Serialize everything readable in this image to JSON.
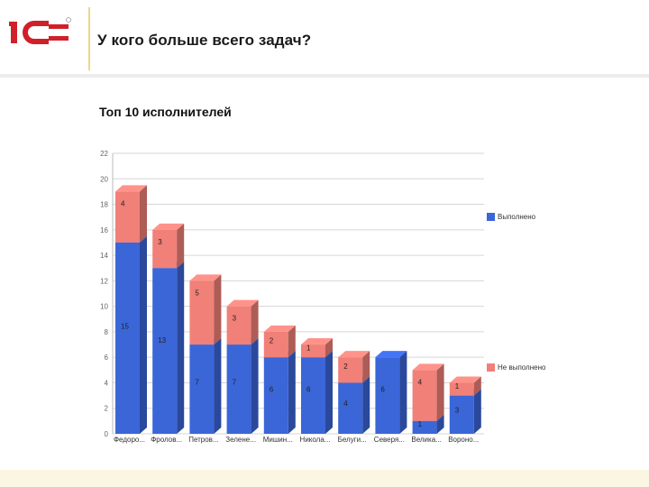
{
  "slide": {
    "title": "У кого больше всего задач?"
  },
  "colors": {
    "done": "#3a66d8",
    "notdone": "#f08078",
    "accent": "#d0202a"
  },
  "chart_data": {
    "type": "bar",
    "stacked": true,
    "title": "Топ 10 исполнителей",
    "categories": [
      "Федоро...",
      "Фролов...",
      "Петров...",
      "Зелене...",
      "Мишин...",
      "Никола...",
      "Белуги...",
      "Северя...",
      "Велика...",
      "Вороно..."
    ],
    "series": [
      {
        "name": "Выполнено",
        "values": [
          15,
          13,
          7,
          7,
          6,
          6,
          4,
          6,
          1,
          3
        ],
        "labels": [
          "15",
          "13",
          "7",
          "7",
          "6",
          "6",
          "4",
          "6",
          "1",
          "3"
        ]
      },
      {
        "name": "Не выполнено",
        "values": [
          4,
          3,
          5,
          3,
          2,
          1,
          2,
          0,
          4,
          1
        ],
        "labels": [
          "4",
          "3",
          "5",
          "3",
          "2",
          "1",
          "2",
          "",
          "4",
          "1"
        ]
      }
    ],
    "ylim": [
      0,
      22
    ],
    "yticks": [
      0,
      2,
      4,
      6,
      8,
      10,
      12,
      14,
      16,
      18,
      20,
      22
    ],
    "grid": true,
    "legend": "right"
  }
}
